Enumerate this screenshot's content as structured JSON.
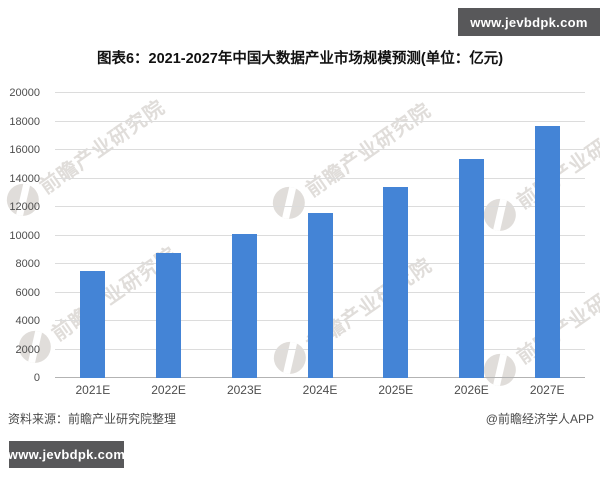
{
  "banners": {
    "top": "www.jevbdpk.com",
    "bottom": "www.jevbdpk.com"
  },
  "title": "图表6：2021-2027年中国大数据产业市场规模预测(单位：亿元)",
  "source_note": "资料来源：前瞻产业研究院整理",
  "credit": "@前瞻经济学人APP",
  "watermark": {
    "text": "前瞻产业研究院"
  },
  "chart_data": {
    "type": "bar",
    "title": "图表6：2021-2027年中国大数据产业市场规模预测(单位：亿元)",
    "unit": "亿元",
    "categories": [
      "2021E",
      "2022E",
      "2023E",
      "2024E",
      "2025E",
      "2026E",
      "2027E"
    ],
    "values": [
      7500,
      8800,
      10100,
      11600,
      13400,
      15400,
      17700
    ],
    "xlabel": "",
    "ylabel": "",
    "ylim": [
      0,
      20000
    ],
    "ytick_step": 2000,
    "grid": true,
    "legend": false,
    "bar_color": "#4484d6",
    "gridline_color": "#dcdcdc",
    "axis_color": "#b3b3b3"
  }
}
